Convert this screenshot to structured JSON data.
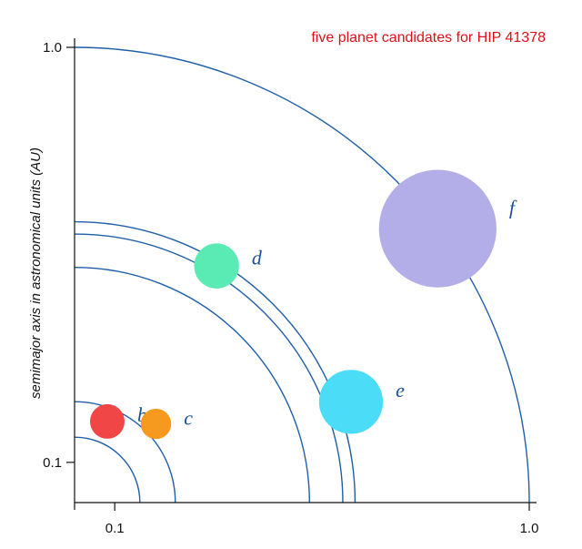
{
  "title": "five planet candidates for HIP 41378",
  "y_axis_label": "semimajor axis in astronomical units (AU)",
  "x_ticks": [
    {
      "label": "0.1",
      "value": 0.1
    },
    {
      "label": "1.0",
      "value": 1.0
    }
  ],
  "y_ticks": [
    {
      "label": "0.1",
      "value": 0.1
    },
    {
      "label": "1.0",
      "value": 1.0
    }
  ],
  "scale": {
    "type": "log",
    "min": 0.08,
    "max": 1.0
  },
  "planets": [
    {
      "id": "b",
      "label": "b",
      "semimajor_axis_au": 0.13,
      "angle_deg": 68,
      "radius_rel": 1.0,
      "color": "#f04646"
    },
    {
      "id": "c",
      "label": "c",
      "semimajor_axis_au": 0.15,
      "angle_deg": 44,
      "radius_rel": 0.88,
      "color": "#f59a1e"
    },
    {
      "id": "d",
      "label": "d",
      "semimajor_axis_au": 0.37,
      "angle_deg": 59,
      "radius_rel": 1.3,
      "color": "#5aebb5"
    },
    {
      "id": "e",
      "label": "e",
      "semimajor_axis_au": 0.41,
      "angle_deg": 20,
      "radius_rel": 1.85,
      "color": "#4bdcf8"
    },
    {
      "id": "f",
      "label": "f",
      "semimajor_axis_au": 1.0,
      "angle_deg": 37,
      "radius_rel": 3.4,
      "color": "#b3aee8"
    }
  ],
  "orbit_radii_au": [
    0.115,
    0.14,
    0.295,
    0.355,
    0.38,
    1.0
  ]
}
